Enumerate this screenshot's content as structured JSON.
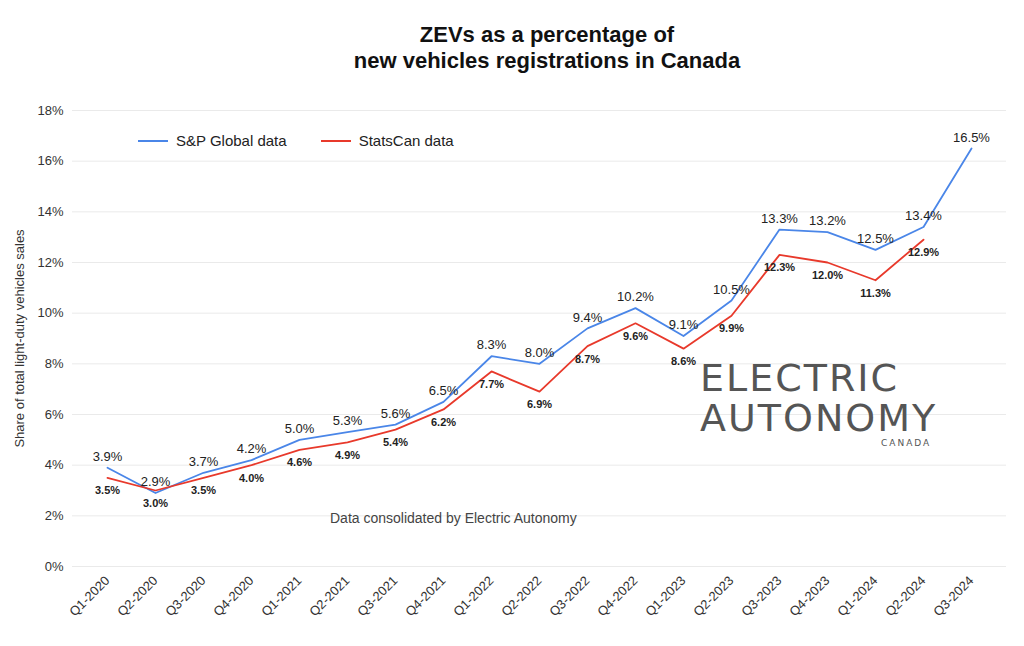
{
  "chart_data": {
    "type": "line",
    "title": "ZEVs as a percentage of\nnew vehicles registrations in Canada",
    "y_label": "Share of total light-duty vehicles sales",
    "annotations": [
      "Data consolidated by Electric Autonomy"
    ],
    "watermark": [
      "ELECTRIC",
      "AUTONOMY",
      "CANADA"
    ],
    "categories": [
      "Q1-2020",
      "Q2-2020",
      "Q3-2020",
      "Q4-2020",
      "Q1-2021",
      "Q2-2021",
      "Q3-2021",
      "Q4-2021",
      "Q1-2022",
      "Q2-2022",
      "Q3-2022",
      "Q4-2022",
      "Q1-2023",
      "Q2-2023",
      "Q3-2023",
      "Q4-2023",
      "Q1-2024",
      "Q2-2024",
      "Q3-2024"
    ],
    "series": [
      {
        "name": "S&P Global data",
        "color": "#4a86e8",
        "values": [
          3.9,
          2.9,
          3.7,
          4.2,
          5.0,
          5.3,
          5.6,
          6.5,
          8.3,
          8.0,
          9.4,
          10.2,
          9.1,
          10.5,
          13.3,
          13.2,
          12.5,
          13.4,
          16.5
        ],
        "value_labels": [
          "3.9%",
          "2.9%",
          "3.7%",
          "4.2%",
          "5.0%",
          "5.3%",
          "5.6%",
          "6.5%",
          "8.3%",
          "8.0%",
          "9.4%",
          "10.2%",
          "9.1%",
          "10.5%",
          "13.3%",
          "13.2%",
          "12.5%",
          "13.4%",
          "16.5%"
        ]
      },
      {
        "name": "StatsCan data",
        "color": "#e8392b",
        "values": [
          3.5,
          3.0,
          3.5,
          4.0,
          4.6,
          4.9,
          5.4,
          6.2,
          7.7,
          6.9,
          8.7,
          9.6,
          8.6,
          9.9,
          12.3,
          12.0,
          11.3,
          12.9,
          null
        ],
        "value_labels": [
          "3.5%",
          "3.0%",
          "3.5%",
          "4.0%",
          "4.6%",
          "4.9%",
          "5.4%",
          "6.2%",
          "7.7%",
          "6.9%",
          "8.7%",
          "9.6%",
          "8.6%",
          "9.9%",
          "12.3%",
          "12.0%",
          "11.3%",
          "12.9%",
          null
        ]
      }
    ],
    "ylim": [
      0,
      18
    ],
    "yticks": [
      {
        "value": 0,
        "label": "0%"
      },
      {
        "value": 2,
        "label": "2%"
      },
      {
        "value": 4,
        "label": "4%"
      },
      {
        "value": 6,
        "label": "6%"
      },
      {
        "value": 8,
        "label": "8%"
      },
      {
        "value": 10,
        "label": "10%"
      },
      {
        "value": 12,
        "label": "12%"
      },
      {
        "value": 14,
        "label": "14%"
      },
      {
        "value": 16,
        "label": "16%"
      },
      {
        "value": 18,
        "label": "18%"
      }
    ],
    "grid": true,
    "legend": "upper left",
    "data_labels": true
  }
}
